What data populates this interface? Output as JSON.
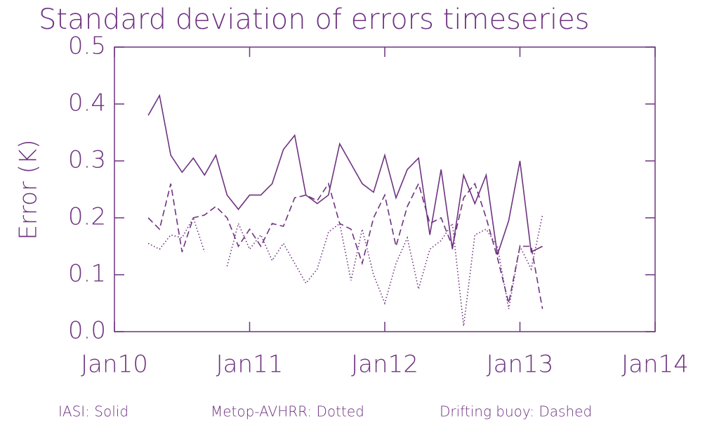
{
  "chart_data": {
    "type": "line",
    "title": "Standard deviation of errors timeseries",
    "ylabel": "Error (K)",
    "color": "#6e3380",
    "xlim": [
      "2010-01",
      "2014-01"
    ],
    "xticks": [
      {
        "value": "2010-01",
        "label": "Jan10"
      },
      {
        "value": "2011-01",
        "label": "Jan11"
      },
      {
        "value": "2012-01",
        "label": "Jan12"
      },
      {
        "value": "2013-01",
        "label": "Jan13"
      },
      {
        "value": "2014-01",
        "label": "Jan14"
      }
    ],
    "ylim": [
      0,
      0.5
    ],
    "yticks": [
      {
        "value": 0,
        "label": "0.0"
      },
      0.1,
      0.2,
      0.3,
      0.4,
      0.5
    ],
    "x": [
      "2010-04",
      "2010-05",
      "2010-06",
      "2010-07",
      "2010-08",
      "2010-09",
      "2010-10",
      "2010-11",
      "2010-12",
      "2011-01",
      "2011-02",
      "2011-03",
      "2011-04",
      "2011-05",
      "2011-06",
      "2011-07",
      "2011-08",
      "2011-09",
      "2011-10",
      "2011-11",
      "2011-12",
      "2012-01",
      "2012-02",
      "2012-03",
      "2012-04",
      "2012-05",
      "2012-06",
      "2012-07",
      "2012-08",
      "2012-09",
      "2012-10",
      "2012-11",
      "2012-12",
      "2013-01",
      "2013-02",
      "2013-03"
    ],
    "series": [
      {
        "line_style": "solid",
        "values": [
          0.38,
          0.415,
          0.31,
          0.28,
          0.305,
          0.275,
          0.31,
          0.24,
          0.215,
          0.24,
          0.24,
          0.26,
          0.32,
          0.345,
          0.24,
          0.225,
          0.24,
          0.33,
          0.295,
          0.26,
          0.245,
          0.31,
          0.235,
          0.285,
          0.305,
          0.17,
          0.285,
          0.145,
          0.275,
          0.225,
          0.275,
          0.135,
          0.195,
          0.3,
          0.14,
          0.15
        ]
      },
      {
        "line_style": "dotted",
        "values": [
          0.155,
          0.145,
          0.17,
          0.165,
          0.2,
          0.14,
          null,
          0.115,
          0.19,
          0.145,
          0.17,
          0.125,
          0.155,
          0.12,
          0.085,
          0.11,
          0.175,
          0.19,
          0.09,
          0.18,
          0.1,
          0.05,
          0.12,
          0.165,
          0.075,
          0.145,
          0.16,
          0.19,
          0.01,
          0.17,
          0.18,
          0.15,
          0.04,
          0.15,
          0.11,
          0.205
        ]
      },
      {
        "line_style": "dashed",
        "values": [
          0.2,
          0.18,
          0.26,
          0.14,
          0.2,
          0.205,
          0.22,
          0.2,
          0.15,
          0.18,
          0.15,
          0.19,
          0.185,
          0.235,
          0.24,
          0.23,
          0.26,
          0.19,
          0.18,
          0.12,
          0.2,
          0.24,
          0.15,
          0.22,
          0.26,
          0.19,
          0.2,
          0.15,
          0.235,
          0.26,
          0.2,
          0.13,
          0.05,
          0.15,
          0.15,
          0.04
        ]
      }
    ],
    "legend": [
      "IASI: Solid",
      "Metop-AVHRR: Dotted",
      "Drifting buoy: Dashed"
    ]
  }
}
